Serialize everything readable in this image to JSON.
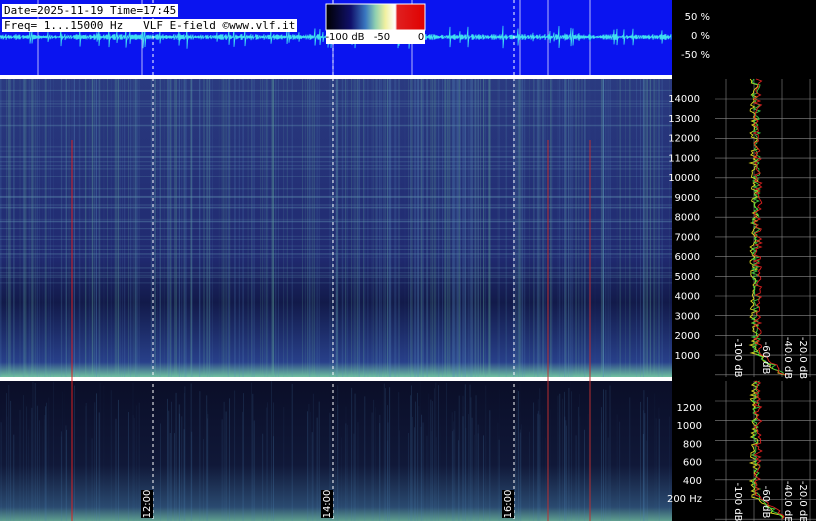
{
  "header": {
    "date_line": "Date=2025-11-19 Time=17:45",
    "freq_line": "Freq= 1...15000 Hz   VLF E-field ©www.vlf.it"
  },
  "colorbar": {
    "labels": [
      "-100 dB",
      "-50",
      "0"
    ]
  },
  "amplitude_scale": {
    "labels": [
      "50 %",
      "0 %",
      "-50 %"
    ]
  },
  "upper_freq_scale": {
    "labels": [
      "14000",
      "13000",
      "12000",
      "11000",
      "10000",
      "9000",
      "8000",
      "7000",
      "6000",
      "5000",
      "4000",
      "3000",
      "2000",
      "1000"
    ]
  },
  "lower_freq_scale": {
    "labels": [
      "1200",
      "1000",
      "800",
      "600",
      "400",
      "200 Hz"
    ]
  },
  "time_scale": {
    "labels": [
      "12:00",
      "14:00",
      "16:00"
    ]
  },
  "upper_spectrum_scale": {
    "labels": [
      "-100 dB",
      "-60 dB",
      "-40.0 dB",
      "-20.0 dB"
    ]
  },
  "lower_spectrum_scale": {
    "labels": [
      "-100 dB",
      "-60 dB",
      "-40.0 dB",
      "-20.0 dB"
    ]
  }
}
